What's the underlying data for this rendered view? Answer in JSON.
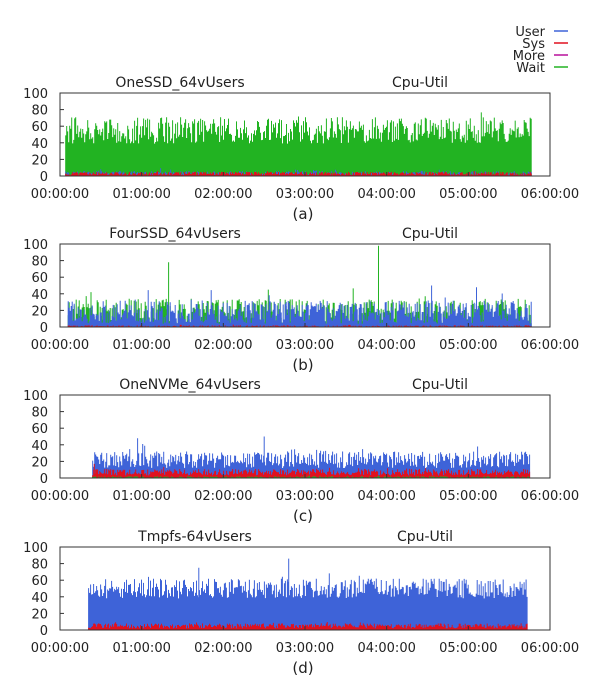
{
  "legend": [
    {
      "label": "User",
      "color": "#3e63d8"
    },
    {
      "label": "Sys",
      "color": "#e0111f"
    },
    {
      "label": "More",
      "color": "#b8119b"
    },
    {
      "label": "Wait",
      "color": "#22b322"
    }
  ],
  "chart_data": [
    {
      "type": "area",
      "title": "OneSSD_64vUsers",
      "subtitle": "Cpu-Util",
      "caption": "(a)",
      "ylim": [
        0,
        100
      ],
      "yticks": [
        0,
        20,
        40,
        60,
        80,
        100
      ],
      "xticks": [
        "00:00:00",
        "01:00:00",
        "02:00:00",
        "03:00:00",
        "04:00:00",
        "05:00:00",
        "06:00:00"
      ],
      "x_range_hours": [
        0,
        6
      ],
      "series": [
        {
          "name": "Wait",
          "active_hours": [
            0.07,
            5.77
          ],
          "mean": 55,
          "noise": 16,
          "spikes": []
        },
        {
          "name": "User",
          "active_hours": [
            0.07,
            5.77
          ],
          "mean": 3,
          "noise": 3,
          "spikes": []
        },
        {
          "name": "Sys",
          "active_hours": [
            0.07,
            5.77
          ],
          "mean": 3,
          "noise": 2,
          "spikes": []
        }
      ]
    },
    {
      "type": "area",
      "title": "FourSSD_64vUsers",
      "subtitle": "Cpu-Util",
      "caption": "(b)",
      "ylim": [
        0,
        100
      ],
      "yticks": [
        0,
        20,
        40,
        60,
        80,
        100
      ],
      "xticks": [
        "00:00:00",
        "01:00:00",
        "02:00:00",
        "03:00:00",
        "04:00:00",
        "05:00:00",
        "06:00:00"
      ],
      "x_range_hours": [
        0,
        6
      ],
      "series": [
        {
          "name": "Wait",
          "active_hours": [
            0.1,
            5.77
          ],
          "mean": 18,
          "noise": 16,
          "spikes": [
            {
              "h": 1.33,
              "v": 78
            },
            {
              "h": 3.9,
              "v": 98
            },
            {
              "h": 0.38,
              "v": 42
            },
            {
              "h": 2.55,
              "v": 45
            }
          ]
        },
        {
          "name": "User",
          "active_hours": [
            0.1,
            5.77
          ],
          "mean": 18,
          "noise": 14,
          "spikes": [
            {
              "h": 4.55,
              "v": 50
            },
            {
              "h": 5.1,
              "v": 48
            }
          ]
        },
        {
          "name": "Sys",
          "active_hours": [
            0.1,
            5.77
          ],
          "mean": 1,
          "noise": 1,
          "spikes": []
        }
      ]
    },
    {
      "type": "line",
      "title": "OneNVMe_64vUsers",
      "subtitle": "Cpu-Util",
      "caption": "(c)",
      "ylim": [
        0,
        100
      ],
      "yticks": [
        0,
        20,
        40,
        60,
        80,
        100
      ],
      "xticks": [
        "00:00:00",
        "01:00:00",
        "02:00:00",
        "03:00:00",
        "04:00:00",
        "05:00:00",
        "06:00:00"
      ],
      "x_range_hours": [
        0,
        6
      ],
      "series": [
        {
          "name": "User",
          "active_hours": [
            0.4,
            5.75
          ],
          "mean": 22,
          "noise": 10,
          "spikes": [
            {
              "h": 2.5,
              "v": 50
            },
            {
              "h": 0.95,
              "v": 48
            }
          ]
        },
        {
          "name": "Sys",
          "active_hours": [
            0.4,
            5.75
          ],
          "mean": 7,
          "noise": 4,
          "spikes": [
            {
              "h": 0.42,
              "v": 17
            }
          ]
        },
        {
          "name": "Wait",
          "active_hours": [
            0.4,
            5.75
          ],
          "mean": 1,
          "noise": 1,
          "spikes": []
        }
      ]
    },
    {
      "type": "line",
      "title": "Tmpfs-64vUsers",
      "subtitle": "Cpu-Util",
      "caption": "(d)",
      "ylim": [
        0,
        100
      ],
      "yticks": [
        0,
        20,
        40,
        60,
        80,
        100
      ],
      "xticks": [
        "00:00:00",
        "01:00:00",
        "02:00:00",
        "03:00:00",
        "04:00:00",
        "05:00:00",
        "06:00:00"
      ],
      "x_range_hours": [
        0,
        6
      ],
      "series": [
        {
          "name": "User",
          "active_hours": [
            0.35,
            5.72
          ],
          "mean": 50,
          "noise": 12,
          "spikes": [
            {
              "h": 2.8,
              "v": 86
            },
            {
              "h": 1.7,
              "v": 75
            }
          ]
        },
        {
          "name": "Sys",
          "active_hours": [
            0.35,
            5.72
          ],
          "mean": 5,
          "noise": 3,
          "spikes": []
        }
      ]
    }
  ]
}
